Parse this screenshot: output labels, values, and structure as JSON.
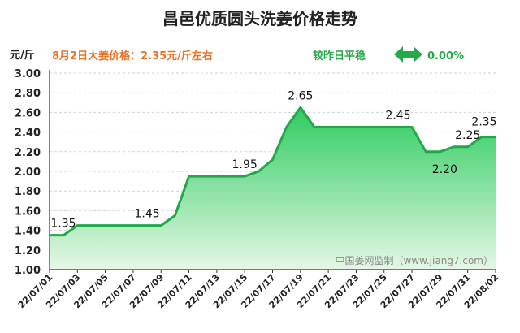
{
  "chart_data": {
    "type": "area",
    "title": "昌邑优质圆头洗姜价格走势",
    "ylabel": "元/斤",
    "xlabel": "",
    "ylim": [
      1.0,
      3.0
    ],
    "y_ticks": [
      "3.00",
      "2.80",
      "2.60",
      "2.40",
      "2.20",
      "2.00",
      "1.80",
      "1.60",
      "1.40",
      "1.20",
      "1.00"
    ],
    "x_tick_labels": [
      "22/07/01",
      "22/07/03",
      "22/07/05",
      "22/07/07",
      "22/07/09",
      "22/07/11",
      "22/07/13",
      "22/07/15",
      "22/07/17",
      "22/07/19",
      "22/07/21",
      "22/07/23",
      "22/07/25",
      "22/07/27",
      "22/07/29",
      "22/07/31",
      "22/08/02"
    ],
    "x": [
      "22/07/01",
      "22/07/02",
      "22/07/03",
      "22/07/04",
      "22/07/05",
      "22/07/06",
      "22/07/07",
      "22/07/08",
      "22/07/09",
      "22/07/10",
      "22/07/11",
      "22/07/12",
      "22/07/13",
      "22/07/14",
      "22/07/15",
      "22/07/16",
      "22/07/17",
      "22/07/18",
      "22/07/19",
      "22/07/20",
      "22/07/21",
      "22/07/22",
      "22/07/23",
      "22/07/24",
      "22/07/25",
      "22/07/26",
      "22/07/27",
      "22/07/28",
      "22/07/29",
      "22/07/30",
      "22/07/31",
      "22/08/01",
      "22/08/02"
    ],
    "values": [
      1.35,
      1.35,
      1.45,
      1.45,
      1.45,
      1.45,
      1.45,
      1.45,
      1.45,
      1.55,
      1.95,
      1.95,
      1.95,
      1.95,
      1.95,
      2.0,
      2.12,
      2.45,
      2.65,
      2.45,
      2.45,
      2.45,
      2.45,
      2.45,
      2.45,
      2.45,
      2.45,
      2.2,
      2.2,
      2.25,
      2.25,
      2.35,
      2.35
    ],
    "data_labels": [
      {
        "index": 0,
        "text": "1.35"
      },
      {
        "index": 7,
        "text": "1.45"
      },
      {
        "index": 14,
        "text": "1.95"
      },
      {
        "index": 18,
        "text": "2.65"
      },
      {
        "index": 25,
        "text": "2.45"
      },
      {
        "index": 28,
        "text": "2.20"
      },
      {
        "index": 30,
        "text": "2.25"
      },
      {
        "index": 32,
        "text": "2.35"
      }
    ],
    "grid": true,
    "line_color": "#22a84a",
    "fill_color_top": "#2ecc5f",
    "fill_color_bottom": "#e6f7e6"
  },
  "info": {
    "price_text": "8月2日大姜价格：2.35元/斤左右",
    "change_text": "较昨日平稳",
    "change_value": "0.00%",
    "change_icon": "left-right-arrow-icon",
    "accent_color": "#e8742a",
    "green_color": "#27a84a"
  },
  "watermark": "中国姜网监制（www.jiang7.com）"
}
